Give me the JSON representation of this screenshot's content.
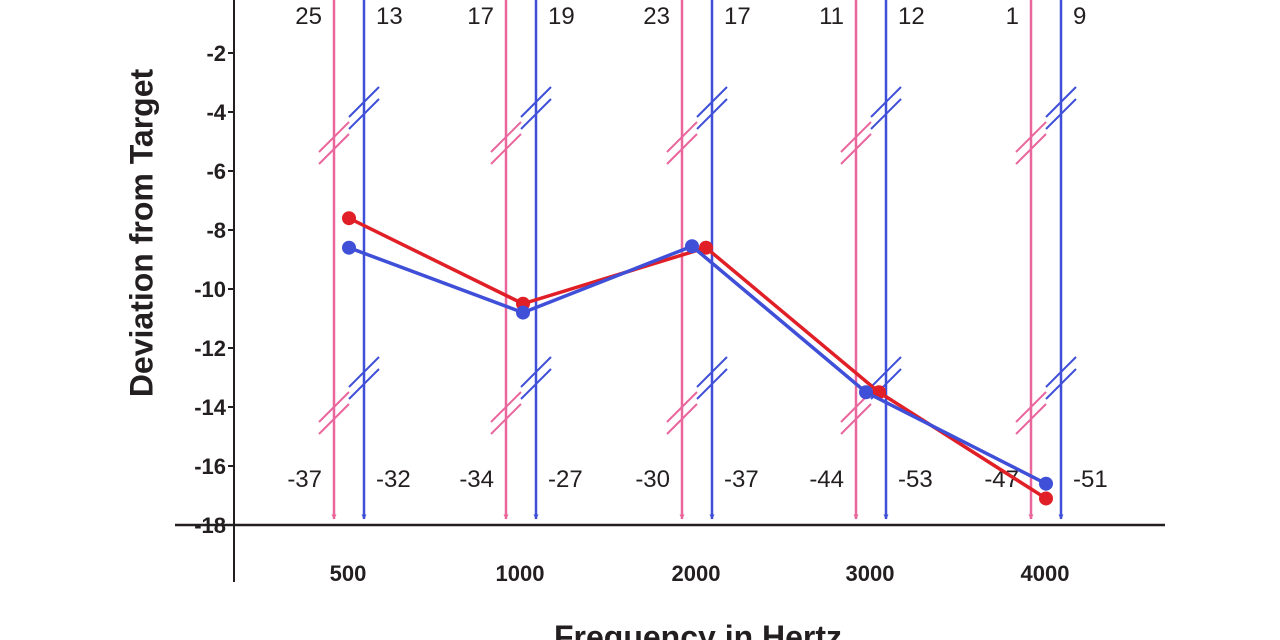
{
  "chart_data": {
    "type": "line",
    "xlabel": "Frequency in Hertz",
    "ylabel": "Deviation from Target",
    "categories": [
      "500",
      "1000",
      "2000",
      "3000",
      "4000"
    ],
    "y_ticks": [
      "-2",
      "-4",
      "-6",
      "-8",
      "-10",
      "-12",
      "-14",
      "-16",
      "-18"
    ],
    "ylim": [
      -18,
      0
    ],
    "grid": false,
    "series": [
      {
        "color": "#e11f26",
        "arrow_color": "#e9679d",
        "values": [
          -7.6,
          -10.5,
          -8.6,
          -13.5,
          -17.1
        ],
        "top_labels": [
          "25",
          "17",
          "23",
          "11",
          "1"
        ],
        "bottom_labels": [
          "-37",
          "-34",
          "-30",
          "-44",
          "-47"
        ]
      },
      {
        "color": "#3f4fd8",
        "arrow_color": "#3f4fd8",
        "values": [
          -8.6,
          -10.8,
          -8.55,
          -13.5,
          -16.6
        ],
        "top_labels": [
          "13",
          "19",
          "17",
          "12",
          "9"
        ],
        "bottom_labels": [
          "-32",
          "-27",
          "-37",
          "-53",
          "-51"
        ]
      }
    ]
  }
}
